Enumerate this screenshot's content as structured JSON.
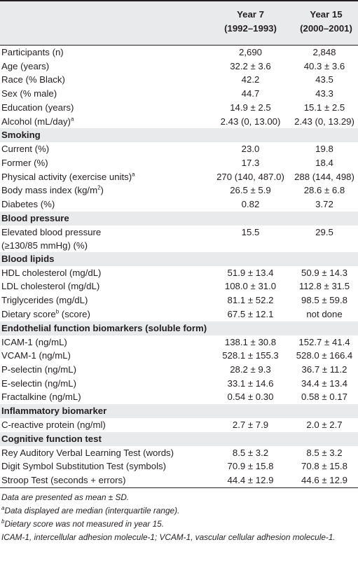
{
  "header": {
    "col1_line1": "Year 7",
    "col1_line2": "(1992–1993)",
    "col2_line1": "Year 15",
    "col2_line2": "(2000–2001)"
  },
  "rows": [
    {
      "type": "row",
      "label": "Participants (n)",
      "y7": "2,690",
      "y15": "2,848"
    },
    {
      "type": "row",
      "label": "Age (years)",
      "y7": "32.2 ± 3.6",
      "y15": "40.3 ± 3.6"
    },
    {
      "type": "row",
      "label": "Race (% Black)",
      "y7": "42.2",
      "y15": "43.5"
    },
    {
      "type": "row",
      "label": "Sex (% male)",
      "y7": "44.7",
      "y15": "43.3"
    },
    {
      "type": "row",
      "label": "Education (years)",
      "y7": "14.9 ± 2.5",
      "y15": "15.1 ± 2.5"
    },
    {
      "type": "row",
      "label": "Alcohol (mL/day)",
      "sup": "a",
      "y7": "2.43 (0, 13.00)",
      "y15": "2.43 (0, 13.29)"
    },
    {
      "type": "section",
      "label": "Smoking"
    },
    {
      "type": "row",
      "label": "Current (%)",
      "y7": "23.0",
      "y15": "19.8"
    },
    {
      "type": "row",
      "label": "Former (%)",
      "y7": "17.3",
      "y15": "18.4"
    },
    {
      "type": "row",
      "label": "Physical activity (exercise units)",
      "sup": "a",
      "y7": "270 (140, 487.0)",
      "y15": "288 (144, 498)"
    },
    {
      "type": "row",
      "label": "Body mass index (kg/m",
      "sup_mid": "2",
      "label_end": ")",
      "y7": "26.5 ± 5.9",
      "y15": "28.6 ± 6.8"
    },
    {
      "type": "row",
      "label": "Diabetes (%)",
      "y7": "0.82",
      "y15": "3.72"
    },
    {
      "type": "section",
      "label": "Blood pressure"
    },
    {
      "type": "two",
      "label": "Elevated blood pressure",
      "label2": "(≥130/85 mmHg) (%)",
      "y7": "15.5",
      "y15": "29.5"
    },
    {
      "type": "section",
      "label": "Blood lipids"
    },
    {
      "type": "row",
      "label": "HDL cholesterol (mg/dL)",
      "y7": "51.9 ± 13.4",
      "y15": "50.9 ± 14.3"
    },
    {
      "type": "row",
      "label": "LDL cholesterol (mg/dL)",
      "y7": "108.0 ± 31.0",
      "y15": "112.8 ± 31.5"
    },
    {
      "type": "row",
      "label": "Triglycerides (mg/dL)",
      "y7": "81.1 ± 52.2",
      "y15": "98.5 ± 59.8"
    },
    {
      "type": "row",
      "label": "Dietary score",
      "sup": "b",
      "label_end": " (score)",
      "y7": "67.5 ± 12.1",
      "y15": "not done"
    },
    {
      "type": "section",
      "label": "Endothelial function biomarkers (soluble form)"
    },
    {
      "type": "row",
      "label": "ICAM-1 (ng/mL)",
      "y7": "138.1 ± 30.8",
      "y15": "152.7 ± 41.4"
    },
    {
      "type": "row",
      "label": "VCAM-1 (ng/mL)",
      "y7": "528.1 ± 155.3",
      "y15": "528.0 ± 166.4"
    },
    {
      "type": "row",
      "label": "P-selectin (ng/mL)",
      "y7": "28.2 ± 9.3",
      "y15": "36.7 ± 11.2"
    },
    {
      "type": "row",
      "label": "E-selectin (ng/mL)",
      "y7": "33.1 ± 14.6",
      "y15": "34.4 ± 13.4"
    },
    {
      "type": "row",
      "label": "Fractalkine (ng/mL)",
      "y7": "0.54 ± 0.30",
      "y15": "0.58 ± 0.17"
    },
    {
      "type": "section",
      "label": "Inflammatory biomarker"
    },
    {
      "type": "row",
      "label": "C-reactive protein (ng/ml)",
      "y7": "2.7 ± 7.9",
      "y15": "2.0 ± 2.7"
    },
    {
      "type": "section",
      "label": "Cognitive function test"
    },
    {
      "type": "row",
      "label": "Rey Auditory Verbal Learning Test (words)",
      "y7": "8.5 ± 3.2",
      "y15": "8.5 ± 3.2"
    },
    {
      "type": "row",
      "label": "Digit Symbol Substitution Test (symbols)",
      "y7": "70.9 ± 15.8",
      "y15": "70.8 ± 15.8"
    },
    {
      "type": "row",
      "label": "Stroop Test (seconds + errors)",
      "y7": "44.4 ± 12.9",
      "y15": "44.6 ± 12.9"
    }
  ],
  "notes": {
    "n1": "Data are presented as mean ± SD.",
    "n2_sup": "a",
    "n2": "Data displayed are median (interquartile range).",
    "n3_sup": "b",
    "n3": "Dietary score was not measured in year 15.",
    "n4": "ICAM-1, intercellular adhesion molecule-1; VCAM-1, vascular cellular adhesion molecule-1."
  }
}
